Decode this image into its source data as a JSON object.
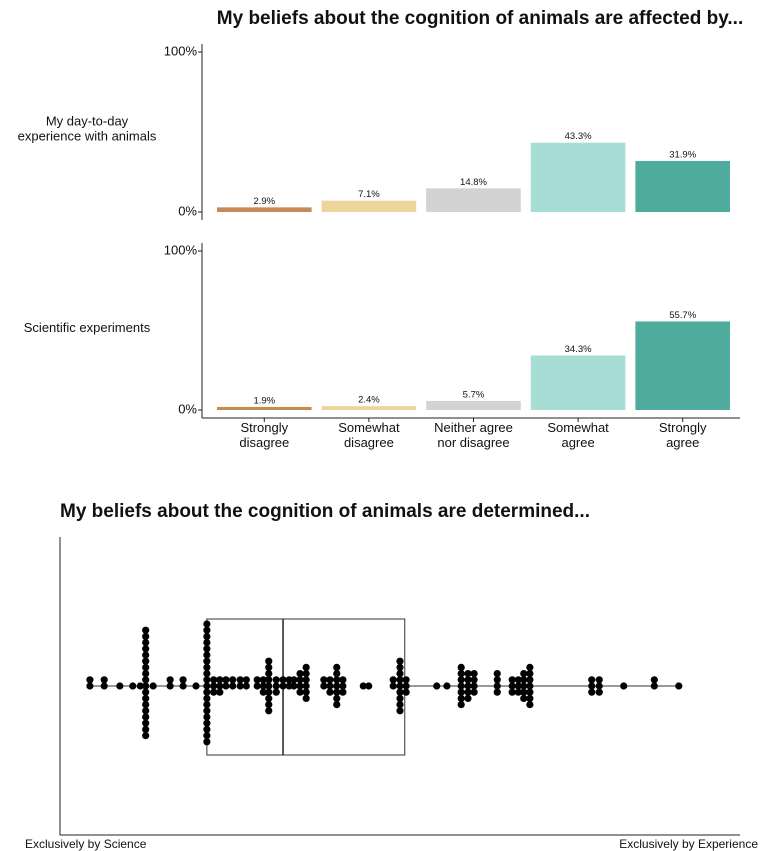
{
  "chart_data": [
    {
      "type": "bar",
      "title": "My beliefs about the cognition of animals are affected by...",
      "categories": [
        "Strongly\ndisagree",
        "Somewhat\ndisagree",
        "Neither agree\nnor disagree",
        "Somewhat\nagree",
        "Strongly\nagree"
      ],
      "colors": [
        "#c68b53",
        "#ecd49a",
        "#d3d3d3",
        "#a6ded6",
        "#4fab9c"
      ],
      "series": [
        {
          "name": "My day-to-day\nexperience with animals",
          "values": [
            2.9,
            7.1,
            14.8,
            43.3,
            31.9
          ],
          "value_labels": [
            "2.9%",
            "7.1%",
            "14.8%",
            "43.3%",
            "31.9%"
          ]
        },
        {
          "name": "Scientific experiments",
          "values": [
            1.9,
            2.4,
            5.7,
            34.3,
            55.7
          ],
          "value_labels": [
            "1.9%",
            "2.4%",
            "5.7%",
            "34.3%",
            "55.7%"
          ]
        }
      ],
      "ylim": [
        0,
        100
      ],
      "yticks": [
        {
          "value": 0,
          "label": "0%"
        },
        {
          "value": 100,
          "label": "100%"
        }
      ]
    },
    {
      "type": "beeswarm",
      "title": "My beliefs about the cognition of animals are determined...",
      "xlim": [
        0,
        100
      ],
      "xticks": [
        {
          "value": 0,
          "label": "Exclusively by Science"
        },
        {
          "value": 100,
          "label": "Exclusively by Experience"
        }
      ],
      "color": "#000000",
      "box": {
        "whisker_low": 4.4,
        "q1": 21.6,
        "median": 32.8,
        "q3": 50.7,
        "whisker_high": 91
      },
      "values": [
        4.4,
        4.4,
        6.5,
        6.5,
        8.8,
        10.7,
        11.8,
        12.6,
        12.6,
        12.6,
        12.6,
        12.6,
        12.6,
        12.6,
        12.6,
        12.6,
        12.6,
        12.6,
        12.6,
        12.6,
        12.6,
        12.6,
        12.6,
        12.6,
        12.6,
        13.7,
        16.2,
        16.2,
        18.1,
        18.1,
        20,
        21.6,
        21.6,
        21.6,
        21.6,
        21.6,
        21.6,
        21.6,
        21.6,
        21.6,
        21.6,
        21.6,
        21.6,
        21.6,
        21.6,
        21.6,
        21.6,
        21.6,
        21.6,
        21.6,
        21.6,
        22.6,
        22.6,
        22.6,
        23.5,
        23.5,
        23.5,
        24.4,
        24.4,
        25.4,
        25.4,
        26.5,
        26.5,
        27.4,
        27.4,
        29,
        29,
        29.9,
        29.9,
        29.9,
        30.7,
        30.7,
        30.7,
        30.7,
        30.7,
        30.7,
        30.7,
        30.7,
        30.7,
        31.8,
        31.8,
        31.8,
        32.8,
        32.8,
        33.7,
        33.7,
        34.4,
        34.4,
        35.3,
        35.3,
        35.3,
        35.3,
        36.2,
        36.2,
        36.2,
        36.2,
        36.2,
        36.2,
        38.8,
        38.8,
        39.7,
        39.7,
        39.7,
        40.7,
        40.7,
        40.7,
        40.7,
        40.7,
        40.7,
        40.7,
        41.6,
        41.6,
        41.6,
        44.6,
        45.4,
        49,
        49,
        50,
        50,
        50,
        50,
        50,
        50,
        50,
        50,
        50,
        50.9,
        50.9,
        50.9,
        55.4,
        56.9,
        59,
        59,
        59,
        59,
        59,
        59,
        59,
        60,
        60,
        60,
        60,
        60,
        60.9,
        60.9,
        60.9,
        60.9,
        64.3,
        64.3,
        64.3,
        64.3,
        66.5,
        66.5,
        66.5,
        67.4,
        67.4,
        67.4,
        68.2,
        68.2,
        68.2,
        68.2,
        68.2,
        69.1,
        69.1,
        69.1,
        69.1,
        69.1,
        69.1,
        69.1,
        78.2,
        78.2,
        78.2,
        79.3,
        79.3,
        79.3,
        82.9,
        87.4,
        87.4,
        91
      ]
    }
  ]
}
